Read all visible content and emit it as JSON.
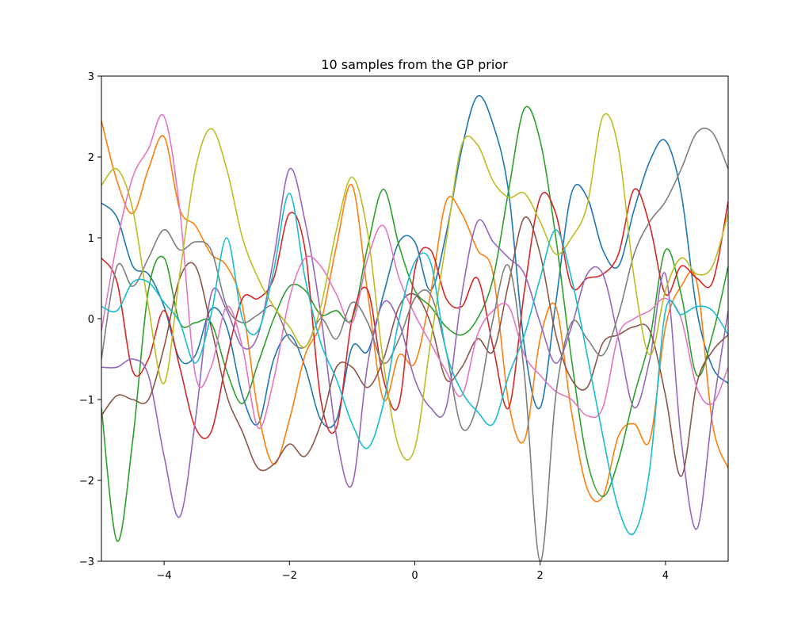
{
  "chart_data": {
    "type": "line",
    "title": "10 samples from the GP prior",
    "xlabel": "",
    "ylabel": "",
    "xlim": [
      -5,
      5
    ],
    "ylim": [
      -3,
      3
    ],
    "x_ticks": [
      -4,
      -2,
      0,
      2,
      4
    ],
    "x_tick_labels": [
      "−4",
      "−2",
      "0",
      "2",
      "4"
    ],
    "y_ticks": [
      -3,
      -2,
      -1,
      0,
      1,
      2,
      3
    ],
    "y_tick_labels": [
      "−3",
      "−2",
      "−1",
      "0",
      "1",
      "2",
      "3"
    ],
    "grid": false,
    "legend": "none",
    "series": [
      {
        "color": "#1f77b4",
        "x": [
          -5,
          -4.75,
          -4.5,
          -4.25,
          -4,
          -3.75,
          -3.5,
          -3.25,
          -3,
          -2.75,
          -2.5,
          -2.25,
          -2,
          -1.75,
          -1.5,
          -1.25,
          -1,
          -0.75,
          -0.5,
          -0.25,
          0,
          0.25,
          0.5,
          0.75,
          1,
          1.25,
          1.5,
          1.75,
          2,
          2.25,
          2.5,
          2.75,
          3,
          3.25,
          3.5,
          3.75,
          4,
          4.25,
          4.5,
          4.75,
          5
        ],
        "values": [
          1.43,
          1.25,
          0.65,
          0.55,
          0.15,
          -0.5,
          -0.45,
          0.12,
          -0.1,
          -0.95,
          -1.3,
          -0.5,
          -0.2,
          -0.6,
          -1.25,
          -1.25,
          -0.35,
          -0.4,
          0.3,
          0.95,
          0.95,
          0.35,
          1.05,
          2.1,
          2.75,
          2.4,
          1.55,
          -0.35,
          -1.1,
          0.2,
          1.55,
          1.5,
          0.85,
          0.65,
          1.35,
          1.95,
          2.2,
          1.55,
          0.1,
          -0.6,
          -0.8
        ]
      },
      {
        "color": "#ff7f0e",
        "x": [
          -5,
          -4.75,
          -4.5,
          -4.25,
          -4,
          -3.75,
          -3.5,
          -3.25,
          -3,
          -2.75,
          -2.5,
          -2.25,
          -2,
          -1.75,
          -1.5,
          -1.25,
          -1,
          -0.75,
          -0.5,
          -0.25,
          0,
          0.25,
          0.5,
          0.75,
          1,
          1.25,
          1.5,
          1.75,
          2,
          2.25,
          2.5,
          2.75,
          3,
          3.25,
          3.5,
          3.75,
          4,
          4.25,
          4.5,
          4.75,
          5
        ],
        "values": [
          2.45,
          1.7,
          1.3,
          1.85,
          2.25,
          1.35,
          1.15,
          0.8,
          0.65,
          0.15,
          -1.15,
          -1.8,
          -1.25,
          -0.45,
          -0.05,
          0.9,
          1.65,
          0.3,
          -1.0,
          -0.45,
          -0.55,
          0.3,
          1.45,
          1.3,
          0.85,
          0.55,
          -1.05,
          -1.5,
          -0.25,
          0.15,
          -1.15,
          -2.1,
          -2.2,
          -1.45,
          -1.3,
          -1.5,
          -0.1,
          0.4,
          0.45,
          -1.3,
          -1.85
        ]
      },
      {
        "color": "#2ca02c",
        "x": [
          -5,
          -4.75,
          -4.5,
          -4.25,
          -4,
          -3.75,
          -3.5,
          -3.25,
          -3,
          -2.75,
          -2.5,
          -2.25,
          -2,
          -1.75,
          -1.5,
          -1.25,
          -1,
          -0.75,
          -0.5,
          -0.25,
          0,
          0.25,
          0.5,
          0.75,
          1,
          1.25,
          1.5,
          1.75,
          2,
          2.25,
          2.5,
          2.75,
          3,
          3.25,
          3.5,
          3.75,
          4,
          4.25,
          4.5,
          4.75,
          5
        ],
        "values": [
          -1.1,
          -2.75,
          -1.5,
          0.35,
          0.75,
          -0.05,
          -0.05,
          -0.05,
          -0.65,
          -1.05,
          -0.55,
          0.0,
          0.4,
          0.35,
          0.05,
          0.1,
          0.0,
          0.9,
          1.6,
          0.9,
          0.35,
          0.15,
          -0.1,
          -0.2,
          0.0,
          0.5,
          1.6,
          2.6,
          2.2,
          1.0,
          -0.5,
          -1.75,
          -2.2,
          -1.75,
          -0.95,
          -0.25,
          0.85,
          0.3,
          -0.7,
          -0.2,
          0.65
        ]
      },
      {
        "color": "#d62728",
        "x": [
          -5,
          -4.75,
          -4.5,
          -4.25,
          -4,
          -3.75,
          -3.5,
          -3.25,
          -3,
          -2.75,
          -2.5,
          -2.25,
          -2,
          -1.75,
          -1.5,
          -1.25,
          -1,
          -0.75,
          -0.5,
          -0.25,
          0,
          0.25,
          0.5,
          0.75,
          1,
          1.25,
          1.5,
          1.75,
          2,
          2.25,
          2.5,
          2.75,
          3,
          3.25,
          3.5,
          3.75,
          4,
          4.25,
          4.5,
          4.75,
          5
        ],
        "values": [
          0.75,
          0.45,
          -0.65,
          -0.5,
          0.1,
          -0.6,
          -1.35,
          -1.4,
          -0.5,
          0.25,
          0.25,
          0.5,
          1.3,
          0.85,
          -1.0,
          -1.35,
          0.0,
          0.35,
          -0.75,
          -1.05,
          0.6,
          0.85,
          0.25,
          0.15,
          0.5,
          -0.35,
          -1.1,
          0.35,
          1.5,
          1.3,
          0.4,
          0.5,
          0.55,
          0.8,
          1.6,
          1.15,
          0.3,
          0.65,
          0.5,
          0.45,
          1.45
        ]
      },
      {
        "color": "#9467bd",
        "x": [
          -5,
          -4.75,
          -4.5,
          -4.25,
          -4,
          -3.75,
          -3.5,
          -3.25,
          -3,
          -2.75,
          -2.5,
          -2.25,
          -2,
          -1.75,
          -1.5,
          -1.25,
          -1,
          -0.75,
          -0.5,
          -0.25,
          0,
          0.25,
          0.5,
          0.75,
          1,
          1.25,
          1.5,
          1.75,
          2,
          2.25,
          2.5,
          2.75,
          3,
          3.25,
          3.5,
          3.75,
          4,
          4.25,
          4.5,
          4.75,
          5
        ],
        "values": [
          -0.6,
          -0.6,
          -0.5,
          -0.7,
          -1.7,
          -2.45,
          -1.25,
          0.3,
          0.1,
          -0.35,
          -0.2,
          0.75,
          1.85,
          1.2,
          0.05,
          -1.45,
          -2.05,
          -0.55,
          0.2,
          -0.05,
          -0.75,
          -1.1,
          -1.1,
          0.3,
          1.2,
          0.95,
          0.75,
          0.55,
          -0.05,
          -0.55,
          -0.1,
          0.55,
          0.55,
          -0.25,
          -1.1,
          -0.5,
          0.55,
          -1.5,
          -2.6,
          -1.15,
          0.1
        ]
      },
      {
        "color": "#8c564b",
        "x": [
          -5,
          -4.75,
          -4.5,
          -4.25,
          -4,
          -3.75,
          -3.5,
          -3.25,
          -3,
          -2.75,
          -2.5,
          -2.25,
          -2,
          -1.75,
          -1.5,
          -1.25,
          -1,
          -0.75,
          -0.5,
          -0.25,
          0,
          0.25,
          0.5,
          0.75,
          1,
          1.25,
          1.5,
          1.75,
          2,
          2.25,
          2.5,
          2.75,
          3,
          3.25,
          3.5,
          3.75,
          4,
          4.25,
          4.5,
          4.75,
          5
        ],
        "values": [
          -1.2,
          -0.95,
          -1.0,
          -1.0,
          -0.35,
          0.5,
          0.65,
          -0.1,
          -0.95,
          -1.4,
          -1.85,
          -1.8,
          -1.55,
          -1.7,
          -1.3,
          -0.6,
          -0.6,
          -0.85,
          -0.5,
          0.15,
          0.3,
          -0.05,
          -0.75,
          -0.6,
          -0.25,
          -0.4,
          0.45,
          1.25,
          0.8,
          -0.2,
          -0.75,
          -0.85,
          -0.3,
          -0.2,
          -0.1,
          -0.15,
          -0.95,
          -1.95,
          -0.8,
          -0.4,
          -0.2
        ]
      },
      {
        "color": "#e377c2",
        "x": [
          -5,
          -4.75,
          -4.5,
          -4.25,
          -4,
          -3.75,
          -3.5,
          -3.25,
          -3,
          -2.75,
          -2.5,
          -2.25,
          -2,
          -1.75,
          -1.5,
          -1.25,
          -1,
          -0.75,
          -0.5,
          -0.25,
          0,
          0.25,
          0.5,
          0.75,
          1,
          1.25,
          1.5,
          1.75,
          2,
          2.25,
          2.5,
          2.75,
          3,
          3.25,
          3.5,
          3.75,
          4,
          4.25,
          4.5,
          4.75,
          5
        ],
        "values": [
          -0.15,
          0.95,
          1.75,
          2.1,
          2.5,
          1.35,
          -0.7,
          -0.6,
          0.15,
          -0.35,
          -1.35,
          -0.75,
          0.25,
          0.75,
          0.65,
          0.3,
          -0.05,
          0.75,
          1.15,
          0.5,
          0.05,
          -0.3,
          -0.65,
          -0.95,
          -0.2,
          0.1,
          0.15,
          -0.45,
          -0.7,
          -0.9,
          -1.0,
          -1.2,
          -1.1,
          -0.2,
          0.0,
          0.1,
          0.25,
          0.0,
          -0.85,
          -1.05,
          -0.6
        ]
      },
      {
        "color": "#7f7f7f",
        "x": [
          -5,
          -4.75,
          -4.5,
          -4.25,
          -4,
          -3.75,
          -3.5,
          -3.25,
          -3,
          -2.75,
          -2.5,
          -2.25,
          -2,
          -1.75,
          -1.5,
          -1.25,
          -1,
          -0.75,
          -0.5,
          -0.25,
          0,
          0.25,
          0.5,
          0.75,
          1,
          1.25,
          1.5,
          1.75,
          2,
          2.25,
          2.5,
          2.75,
          3,
          3.25,
          3.5,
          3.75,
          4,
          4.25,
          4.5,
          4.75,
          5
        ],
        "values": [
          -0.5,
          0.65,
          0.4,
          0.75,
          1.1,
          0.85,
          0.95,
          0.85,
          0.15,
          -0.05,
          0.05,
          0.15,
          -0.25,
          -0.35,
          0.0,
          -0.25,
          0.2,
          -0.05,
          -0.55,
          -0.25,
          0.25,
          0.3,
          -0.4,
          -1.35,
          -1.05,
          0.0,
          0.65,
          -0.7,
          -3.0,
          -0.95,
          -0.05,
          -0.25,
          -0.45,
          0.05,
          0.8,
          1.2,
          1.45,
          1.85,
          2.3,
          2.3,
          1.85
        ]
      },
      {
        "color": "#bcbd22",
        "x": [
          -5,
          -4.75,
          -4.5,
          -4.25,
          -4,
          -3.75,
          -3.5,
          -3.25,
          -3,
          -2.75,
          -2.5,
          -2.25,
          -2,
          -1.75,
          -1.5,
          -1.25,
          -1,
          -0.75,
          -0.5,
          -0.25,
          0,
          0.25,
          0.5,
          0.75,
          1,
          1.25,
          1.5,
          1.75,
          2,
          2.25,
          2.5,
          2.75,
          3,
          3.25,
          3.5,
          3.75,
          4,
          4.25,
          4.5,
          4.75,
          5
        ],
        "values": [
          1.65,
          1.85,
          1.35,
          0.15,
          -0.8,
          0.55,
          1.85,
          2.35,
          1.85,
          1.0,
          0.5,
          0.15,
          -0.1,
          -0.35,
          0.15,
          1.1,
          1.75,
          1.05,
          -0.55,
          -1.6,
          -1.6,
          -0.3,
          0.95,
          2.15,
          2.15,
          1.7,
          1.5,
          1.55,
          1.2,
          0.8,
          1.0,
          1.4,
          2.5,
          2.1,
          0.5,
          -0.45,
          0.35,
          0.75,
          0.55,
          0.65,
          1.3
        ]
      },
      {
        "color": "#17becf",
        "x": [
          -5,
          -4.75,
          -4.5,
          -4.25,
          -4,
          -3.75,
          -3.5,
          -3.25,
          -3,
          -2.75,
          -2.5,
          -2.25,
          -2,
          -1.75,
          -1.5,
          -1.25,
          -1,
          -0.75,
          -0.5,
          -0.25,
          0,
          0.25,
          0.5,
          0.75,
          1,
          1.25,
          1.5,
          1.75,
          2,
          2.25,
          2.5,
          2.75,
          3,
          3.25,
          3.5,
          3.75,
          4,
          4.25,
          4.5,
          4.75,
          5
        ],
        "values": [
          0.15,
          0.1,
          0.45,
          0.45,
          0.2,
          -0.05,
          -0.55,
          0.05,
          1.0,
          0.0,
          -0.15,
          0.6,
          1.55,
          0.5,
          -0.3,
          -0.75,
          -1.3,
          -1.6,
          -1.05,
          0.0,
          0.7,
          0.7,
          -0.4,
          -0.9,
          -1.15,
          -1.3,
          -0.7,
          -0.2,
          0.5,
          1.1,
          0.5,
          -0.45,
          -1.45,
          -2.35,
          -2.65,
          -1.85,
          0.1,
          0.05,
          0.15,
          0.1,
          -0.2
        ]
      }
    ]
  }
}
